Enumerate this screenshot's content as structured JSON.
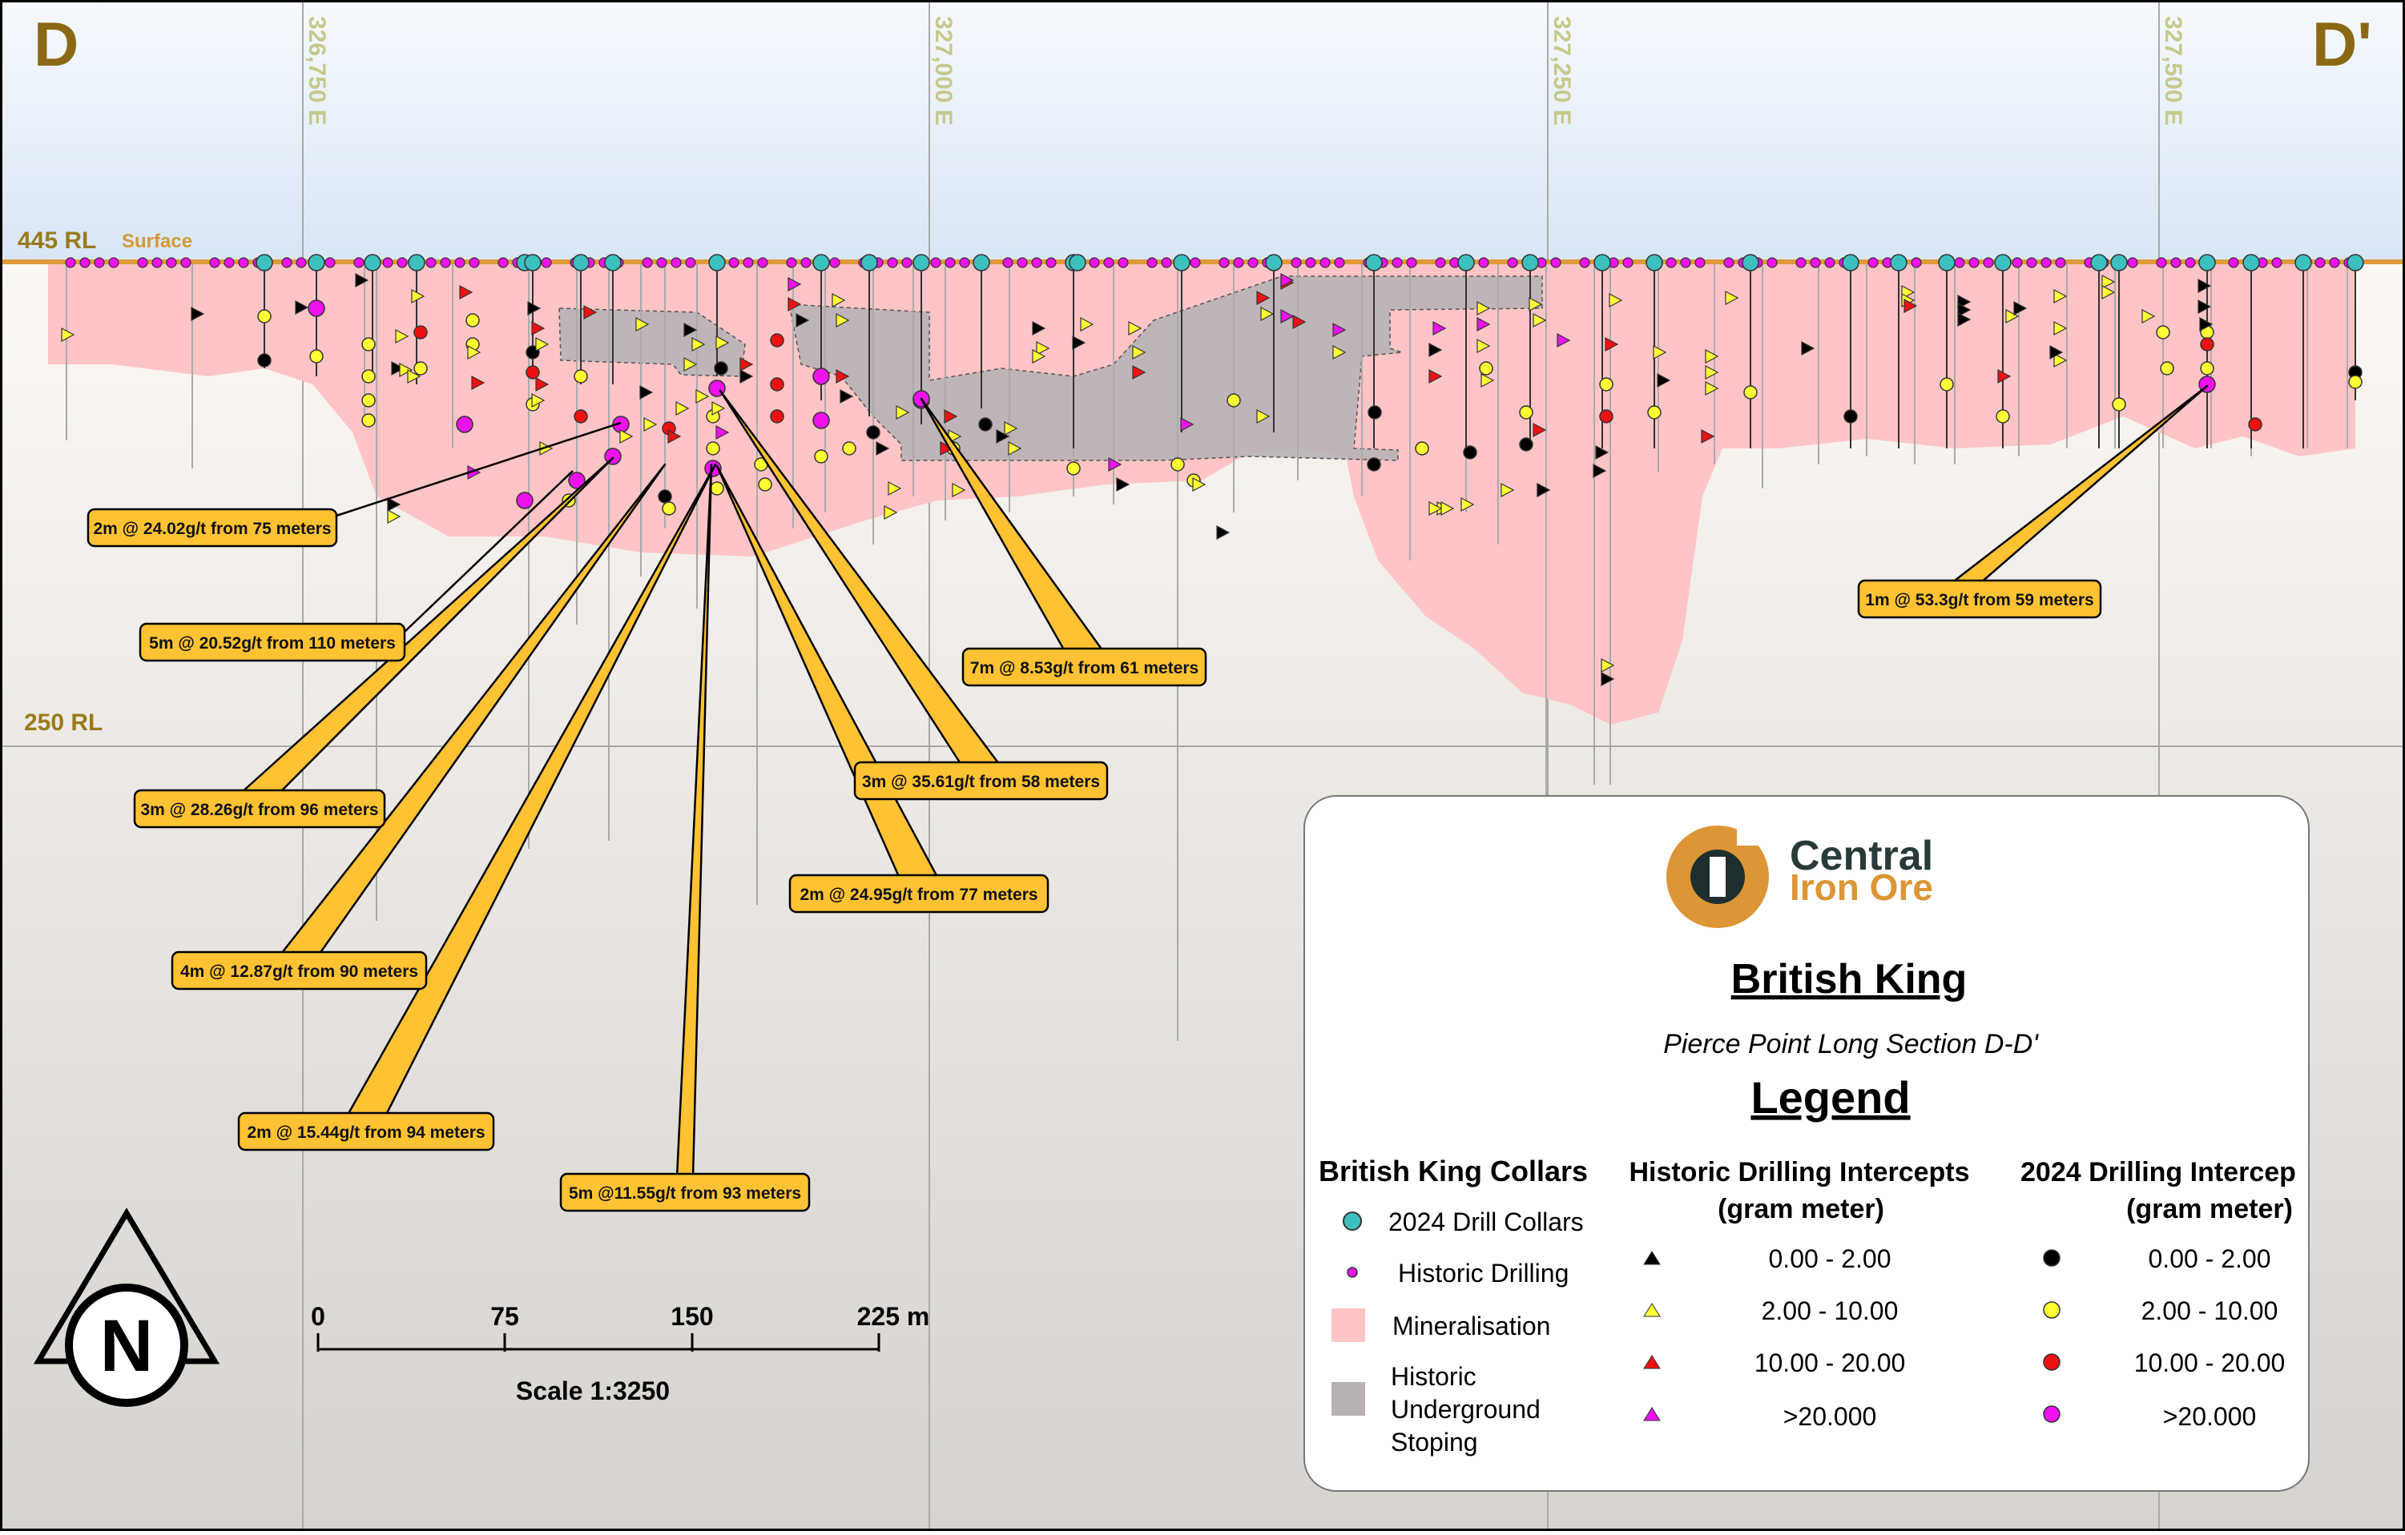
{
  "section": {
    "label_left": "D",
    "label_right": "D'",
    "eastings": [
      "326,750 E",
      "327,000 E",
      "327,250 E",
      "327,500 E"
    ],
    "rl_top": "445 RL",
    "surface": "Surface",
    "rl_bottom": "250 RL"
  },
  "callouts": [
    {
      "text": "2m @ 24.02g/t from 75 meters"
    },
    {
      "text": "5m @ 20.52g/t from 110 meters"
    },
    {
      "text": "3m @ 28.26g/t from 96 meters"
    },
    {
      "text": "4m @ 12.87g/t from 90 meters"
    },
    {
      "text": "2m @ 15.44g/t from 94 meters"
    },
    {
      "text": "5m @11.55g/t from 93 meters"
    },
    {
      "text": "2m @ 24.95g/t from 77 meters"
    },
    {
      "text": "3m @ 35.61g/t from 58 meters"
    },
    {
      "text": "7m @ 8.53g/t from 61 meters"
    },
    {
      "text": "1m @ 53.3g/t from 59 meters"
    }
  ],
  "scale": {
    "ticks": [
      "0",
      "75",
      "150",
      "225 m"
    ],
    "label": "Scale 1:3250"
  },
  "north": {
    "letter": "N"
  },
  "legend": {
    "logo_line1": "Central",
    "logo_line2": "Iron Ore",
    "title": "British King",
    "subtitle": "Pierce Point Long Section D-D'",
    "heading": "Legend",
    "col1": {
      "title": "British King Collars",
      "items": [
        "2024 Drill Collars",
        "Historic Drilling",
        "Mineralisation",
        "Historic",
        "Underground",
        "Stoping"
      ]
    },
    "col2": {
      "title1": "Historic Drilling Intercepts",
      "title2": "(gram meter)",
      "items": [
        "0.00 - 2.00",
        "2.00 - 10.00",
        "10.00 - 20.00",
        ">20.000"
      ]
    },
    "col3": {
      "title1": "2024 Drilling Intercep",
      "title2": "(gram meter)",
      "items": [
        "0.00 - 2.00",
        "2.00 - 10.00",
        "10.00 - 20.00",
        ">20.000"
      ]
    }
  },
  "colors": {
    "grade_low": "#000000",
    "grade_mid": "#ffff33",
    "grade_high": "#ee1111",
    "grade_top": "#ee11ee",
    "collar_2024": "#3cc0c0",
    "mineralisation": "#ffc4c6",
    "stoping": "#b9b3b6",
    "callout": "#ffc233",
    "surface": "#e09a3a",
    "label_brown": "#8b6914"
  }
}
